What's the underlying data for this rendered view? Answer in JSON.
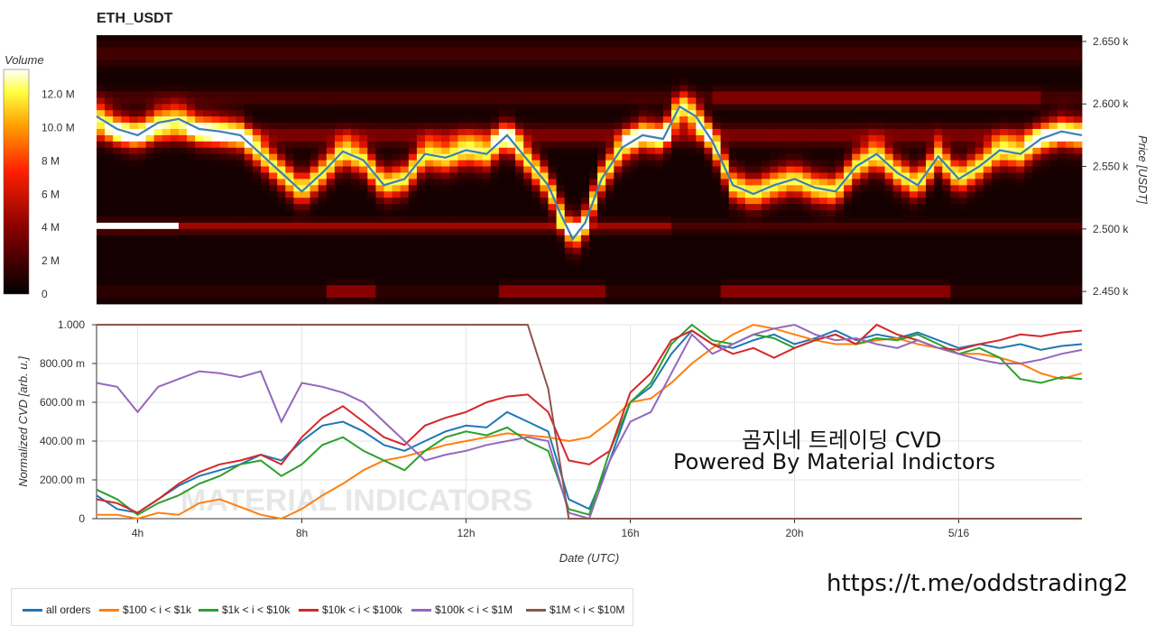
{
  "title": "ETH_USDT",
  "colorbar": {
    "label": "Volume",
    "ticks": [
      "0",
      "2 M",
      "4 M",
      "6 M",
      "8 M",
      "10.0 M",
      "12.0 M"
    ]
  },
  "overlay": {
    "line1": "곰지네 트레이딩 CVD",
    "line2": "Powered By Material Indictors",
    "url": "https://t.me/oddstrading2"
  },
  "watermark": "MATERIAL INDICATORS",
  "colors": {
    "all_orders": "#1f77b4",
    "s100_1k": "#ff7f0e",
    "s1k_10k": "#2ca02c",
    "s10k_100k": "#d62728",
    "s100k_1m": "#9467bd",
    "s1m_10m": "#8c564b",
    "price_line": "#3b7fb5"
  },
  "chart_data": [
    {
      "type": "heatmap",
      "title": "ETH_USDT",
      "ylabel": "Price [USDT]",
      "ylim": [
        2440,
        2655
      ],
      "yticks": [
        "2.450 k",
        "2.500 k",
        "2.550 k",
        "2.600 k",
        "2.650 k"
      ],
      "ytick_values": [
        2450,
        2500,
        2550,
        2600,
        2650
      ],
      "x_hours": [
        3,
        4,
        5,
        6,
        7,
        8,
        9,
        10,
        11,
        12,
        13,
        14,
        14.5,
        15,
        16,
        17,
        18,
        19,
        20,
        21,
        22,
        23,
        24,
        25,
        26,
        27
      ],
      "price_series": {
        "name": "price",
        "x": [
          3,
          3.5,
          4,
          4.5,
          5,
          5.5,
          6,
          6.5,
          7,
          7.5,
          8,
          8.5,
          9,
          9.5,
          10,
          10.5,
          11,
          11.5,
          12,
          12.5,
          13,
          13.5,
          14,
          14.3,
          14.6,
          14.9,
          15.3,
          15.8,
          16.3,
          16.8,
          17.2,
          17.6,
          18,
          18.5,
          19,
          19.5,
          20,
          20.5,
          21,
          21.5,
          22,
          22.5,
          23,
          23.5,
          24,
          24.5,
          25,
          25.5,
          26,
          26.5,
          27
        ],
        "values": [
          2590,
          2580,
          2575,
          2585,
          2588,
          2580,
          2578,
          2575,
          2560,
          2545,
          2530,
          2545,
          2562,
          2555,
          2535,
          2540,
          2560,
          2557,
          2563,
          2560,
          2575,
          2555,
          2535,
          2512,
          2492,
          2505,
          2540,
          2565,
          2575,
          2572,
          2598,
          2590,
          2570,
          2535,
          2528,
          2535,
          2540,
          2533,
          2530,
          2550,
          2560,
          2545,
          2535,
          2558,
          2540,
          2550,
          2563,
          2560,
          2572,
          2578,
          2575
        ]
      }
    },
    {
      "type": "line",
      "xlabel": "Date (UTC)",
      "ylabel": "Normalized CVD [arb. u.]",
      "ylim": [
        0,
        1
      ],
      "yticks": [
        "0",
        "200.00 m",
        "400.00 m",
        "600.00 m",
        "800.00 m",
        "1.000"
      ],
      "ytick_values": [
        0,
        0.2,
        0.4,
        0.6,
        0.8,
        1.0
      ],
      "xlim": [
        3,
        27
      ],
      "xticks": [
        "4h",
        "8h",
        "12h",
        "16h",
        "20h",
        "5/16"
      ],
      "xtick_values": [
        4,
        8,
        12,
        16,
        20,
        24
      ],
      "x": [
        3,
        3.5,
        4,
        4.5,
        5,
        5.5,
        6,
        6.5,
        7,
        7.5,
        8,
        8.5,
        9,
        9.5,
        10,
        10.5,
        11,
        11.5,
        12,
        12.5,
        13,
        13.5,
        14,
        14.5,
        15,
        15.5,
        16,
        16.5,
        17,
        17.5,
        18,
        18.5,
        19,
        19.5,
        20,
        20.5,
        21,
        21.5,
        22,
        22.5,
        23,
        23.5,
        24,
        24.5,
        25,
        25.5,
        26,
        26.5,
        27
      ],
      "series": [
        {
          "name": "all orders",
          "color_key": "all_orders",
          "values": [
            0.12,
            0.05,
            0.03,
            0.1,
            0.17,
            0.22,
            0.25,
            0.28,
            0.33,
            0.3,
            0.4,
            0.48,
            0.5,
            0.45,
            0.38,
            0.35,
            0.4,
            0.45,
            0.48,
            0.47,
            0.55,
            0.5,
            0.45,
            0.1,
            0.05,
            0.3,
            0.6,
            0.68,
            0.85,
            0.97,
            0.9,
            0.88,
            0.92,
            0.95,
            0.9,
            0.93,
            0.97,
            0.92,
            0.95,
            0.93,
            0.96,
            0.92,
            0.88,
            0.9,
            0.88,
            0.9,
            0.87,
            0.89,
            0.9
          ]
        },
        {
          "name": "$100 < i < $1k",
          "color_key": "s100_1k",
          "values": [
            0.02,
            0.02,
            0.0,
            0.03,
            0.02,
            0.08,
            0.1,
            0.06,
            0.02,
            0.0,
            0.05,
            0.12,
            0.18,
            0.25,
            0.3,
            0.32,
            0.35,
            0.38,
            0.4,
            0.42,
            0.44,
            0.43,
            0.42,
            0.4,
            0.42,
            0.5,
            0.6,
            0.62,
            0.7,
            0.8,
            0.88,
            0.95,
            1.0,
            0.98,
            0.95,
            0.92,
            0.9,
            0.9,
            0.92,
            0.93,
            0.9,
            0.88,
            0.85,
            0.85,
            0.83,
            0.8,
            0.75,
            0.72,
            0.75
          ]
        },
        {
          "name": "$1k < i < $10k",
          "color_key": "s1k_10k",
          "values": [
            0.15,
            0.1,
            0.02,
            0.08,
            0.12,
            0.18,
            0.22,
            0.28,
            0.3,
            0.22,
            0.28,
            0.38,
            0.42,
            0.35,
            0.3,
            0.25,
            0.35,
            0.42,
            0.45,
            0.43,
            0.47,
            0.4,
            0.35,
            0.05,
            0.02,
            0.35,
            0.6,
            0.7,
            0.9,
            1.0,
            0.92,
            0.9,
            0.95,
            0.93,
            0.88,
            0.92,
            0.95,
            0.9,
            0.93,
            0.92,
            0.95,
            0.9,
            0.85,
            0.88,
            0.83,
            0.72,
            0.7,
            0.73,
            0.72
          ]
        },
        {
          "name": "$10k < i < $100k",
          "color_key": "s10k_100k",
          "values": [
            0.1,
            0.08,
            0.03,
            0.1,
            0.18,
            0.24,
            0.28,
            0.3,
            0.33,
            0.28,
            0.42,
            0.52,
            0.58,
            0.5,
            0.42,
            0.38,
            0.48,
            0.52,
            0.55,
            0.6,
            0.63,
            0.64,
            0.55,
            0.3,
            0.28,
            0.35,
            0.65,
            0.75,
            0.92,
            0.97,
            0.9,
            0.85,
            0.88,
            0.83,
            0.88,
            0.92,
            0.95,
            0.9,
            1.0,
            0.95,
            0.92,
            0.88,
            0.87,
            0.9,
            0.92,
            0.95,
            0.94,
            0.96,
            0.97
          ]
        },
        {
          "name": "$100k < i < $1M",
          "color_key": "s100k_1m",
          "values": [
            0.7,
            0.68,
            0.55,
            0.68,
            0.72,
            0.76,
            0.75,
            0.73,
            0.76,
            0.5,
            0.7,
            0.68,
            0.65,
            0.6,
            0.5,
            0.4,
            0.3,
            0.33,
            0.35,
            0.38,
            0.4,
            0.42,
            0.4,
            0.03,
            0.0,
            0.3,
            0.5,
            0.55,
            0.75,
            0.95,
            0.85,
            0.9,
            0.95,
            0.98,
            1.0,
            0.95,
            0.92,
            0.93,
            0.9,
            0.88,
            0.92,
            0.88,
            0.85,
            0.82,
            0.8,
            0.8,
            0.82,
            0.85,
            0.87
          ]
        },
        {
          "name": "$1M < i < $10M",
          "color_key": "s1m_10m",
          "values": [
            1.0,
            1.0,
            1.0,
            1.0,
            1.0,
            1.0,
            1.0,
            1.0,
            1.0,
            1.0,
            1.0,
            1.0,
            1.0,
            1.0,
            1.0,
            1.0,
            1.0,
            1.0,
            1.0,
            1.0,
            1.0,
            1.0,
            0.67,
            0.0,
            0.0,
            0.0,
            0.0,
            0.0,
            0.0,
            0.0,
            0.0,
            0.0,
            0.0,
            0.0,
            0.0,
            0.0,
            0.0,
            0.0,
            0.0,
            0.0,
            0.0,
            0.0,
            0.0,
            0.0,
            0.0,
            0.0,
            0.0,
            0.0,
            0.0
          ]
        }
      ],
      "legend": "bottom"
    }
  ]
}
